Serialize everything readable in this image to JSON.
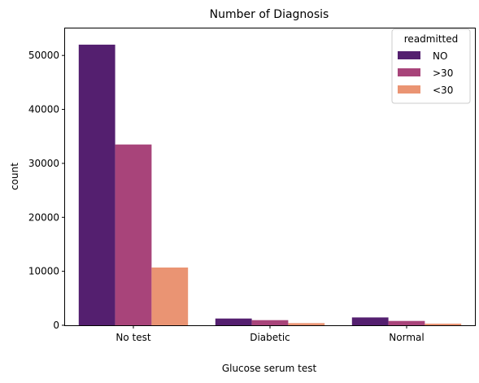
{
  "chart_data": {
    "type": "bar",
    "title": "Number of Diagnosis",
    "xlabel": "Glucose serum test",
    "ylabel": "count",
    "categories": [
      "No test",
      "Diabetic",
      "Normal"
    ],
    "series": [
      {
        "name": "NO",
        "color": "#541f6f",
        "values": [
          52000,
          1250,
          1450
        ]
      },
      {
        "name": ">30",
        "color": "#a8447a",
        "values": [
          33500,
          950,
          800
        ]
      },
      {
        "name": "<30",
        "color": "#ea9473",
        "values": [
          10700,
          400,
          300
        ]
      }
    ],
    "ylim": [
      0,
      55000
    ],
    "yticks": [
      0,
      10000,
      20000,
      30000,
      40000,
      50000
    ],
    "legend": {
      "title": "readmitted",
      "position": "top-right"
    },
    "grid": false
  }
}
